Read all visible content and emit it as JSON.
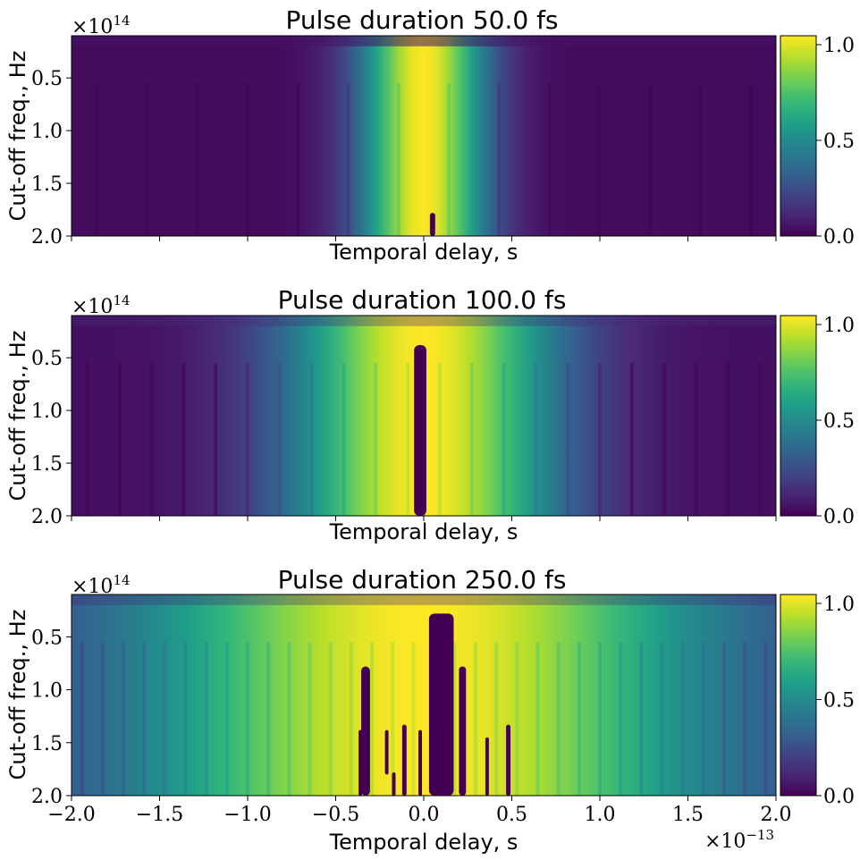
{
  "chart_data": [
    {
      "type": "heatmap",
      "title": "Pulse duration 50.0 fs",
      "xlabel": "Temporal delay, s",
      "ylabel": "Cut-off freq., Hz",
      "y_offset_label": "×10",
      "y_offset_exp": "14",
      "xlim": [
        -2e-13,
        2e-13
      ],
      "ylim": [
        200000000000000.0,
        10000000000000.0
      ],
      "xticks": [],
      "yticks": [
        {
          "value": 50000000000000.0,
          "label": "0.5"
        },
        {
          "value": 100000000000000.0,
          "label": "1.0"
        },
        {
          "value": 150000000000000.0,
          "label": "1.5"
        },
        {
          "value": 200000000000000.0,
          "label": "2.0"
        }
      ],
      "colormap": "viridis",
      "colorbar": {
        "min": 0.0,
        "max": 1.0,
        "ticks": [
          {
            "value": 0.0,
            "label": "0.0"
          },
          {
            "value": 0.5,
            "label": "0.5"
          },
          {
            "value": 1.0,
            "label": "1.0"
          }
        ]
      },
      "profile": {
        "center": 0.0,
        "width": 3.5e-14,
        "floor": 0.03
      },
      "holes": [
        {
          "x": 5e-15,
          "w": 3e-15,
          "ytop": 178000000000000.0,
          "ybot": 200000000000000.0
        }
      ]
    },
    {
      "type": "heatmap",
      "title": "Pulse duration 100.0 fs",
      "xlabel": "Temporal delay, s",
      "ylabel": "Cut-off freq., Hz",
      "y_offset_label": "×10",
      "y_offset_exp": "14",
      "xlim": [
        -2e-13,
        2e-13
      ],
      "ylim": [
        200000000000000.0,
        10000000000000.0
      ],
      "xticks": [],
      "yticks": [
        {
          "value": 50000000000000.0,
          "label": "0.5"
        },
        {
          "value": 100000000000000.0,
          "label": "1.0"
        },
        {
          "value": 150000000000000.0,
          "label": "1.5"
        },
        {
          "value": 200000000000000.0,
          "label": "2.0"
        }
      ],
      "colormap": "viridis",
      "colorbar": {
        "min": 0.0,
        "max": 1.0,
        "ticks": [
          {
            "value": 0.0,
            "label": "0.0"
          },
          {
            "value": 0.5,
            "label": "0.5"
          },
          {
            "value": 1.0,
            "label": "1.0"
          }
        ]
      },
      "profile": {
        "center": 0.0,
        "width": 7.5e-14,
        "floor": 0.04
      },
      "holes": [
        {
          "x": -2e-15,
          "w": 7e-15,
          "ytop": 38000000000000.0,
          "ybot": 200000000000000.0
        }
      ]
    },
    {
      "type": "heatmap",
      "title": "Pulse duration 250.0 fs",
      "xlabel": "Temporal delay, s",
      "ylabel": "Cut-off freq., Hz",
      "y_offset_label": "×10",
      "y_offset_exp": "14",
      "x_offset_label": "×10",
      "x_offset_exp": "−13",
      "xlim": [
        -2e-13,
        2e-13
      ],
      "ylim": [
        200000000000000.0,
        10000000000000.0
      ],
      "xticks": [
        {
          "value": -2e-13,
          "label": "−2.0"
        },
        {
          "value": -1.5e-13,
          "label": "−1.5"
        },
        {
          "value": -1e-13,
          "label": "−1.0"
        },
        {
          "value": -5e-14,
          "label": "−0.5"
        },
        {
          "value": 0.0,
          "label": "0.0"
        },
        {
          "value": 5e-14,
          "label": "0.5"
        },
        {
          "value": 1e-13,
          "label": "1.0"
        },
        {
          "value": 1.5e-13,
          "label": "1.5"
        },
        {
          "value": 2e-13,
          "label": "2.0"
        }
      ],
      "yticks": [
        {
          "value": 50000000000000.0,
          "label": "0.5"
        },
        {
          "value": 100000000000000.0,
          "label": "1.0"
        },
        {
          "value": 150000000000000.0,
          "label": "1.5"
        },
        {
          "value": 200000000000000.0,
          "label": "2.0"
        }
      ],
      "colormap": "viridis",
      "colorbar": {
        "min": 0.0,
        "max": 1.0,
        "ticks": [
          {
            "value": 0.0,
            "label": "0.0"
          },
          {
            "value": 0.5,
            "label": "0.5"
          },
          {
            "value": 1.0,
            "label": "1.0"
          }
        ]
      },
      "profile": {
        "center": 0.0,
        "width": 1.6e-13,
        "floor": 0.12
      },
      "holes": [
        {
          "x": 1e-14,
          "w": 1.4e-14,
          "ytop": 28000000000000.0,
          "ybot": 200000000000000.0
        },
        {
          "x": -3.3e-14,
          "w": 5e-15,
          "ytop": 78000000000000.0,
          "ybot": 200000000000000.0
        },
        {
          "x": 2.2e-14,
          "w": 4e-15,
          "ytop": 78000000000000.0,
          "ybot": 200000000000000.0
        },
        {
          "x": -3.6e-14,
          "w": 2e-15,
          "ytop": 138000000000000.0,
          "ybot": 200000000000000.0
        },
        {
          "x": -2.1e-14,
          "w": 2e-15,
          "ytop": 138000000000000.0,
          "ybot": 180000000000000.0
        },
        {
          "x": -1.1e-14,
          "w": 2.5e-15,
          "ytop": 133000000000000.0,
          "ybot": 200000000000000.0
        },
        {
          "x": -2e-15,
          "w": 2e-15,
          "ytop": 138000000000000.0,
          "ybot": 200000000000000.0
        },
        {
          "x": 4.8e-14,
          "w": 2.5e-15,
          "ytop": 133000000000000.0,
          "ybot": 200000000000000.0
        },
        {
          "x": 3.6e-14,
          "w": 2e-15,
          "ytop": 145000000000000.0,
          "ybot": 200000000000000.0
        },
        {
          "x": -1.7e-14,
          "w": 2e-15,
          "ytop": 178000000000000.0,
          "ybot": 200000000000000.0
        },
        {
          "x": 1e-14,
          "w": 2e-15,
          "ytop": 150000000000000.0,
          "ybot": 200000000000000.0
        }
      ]
    }
  ]
}
